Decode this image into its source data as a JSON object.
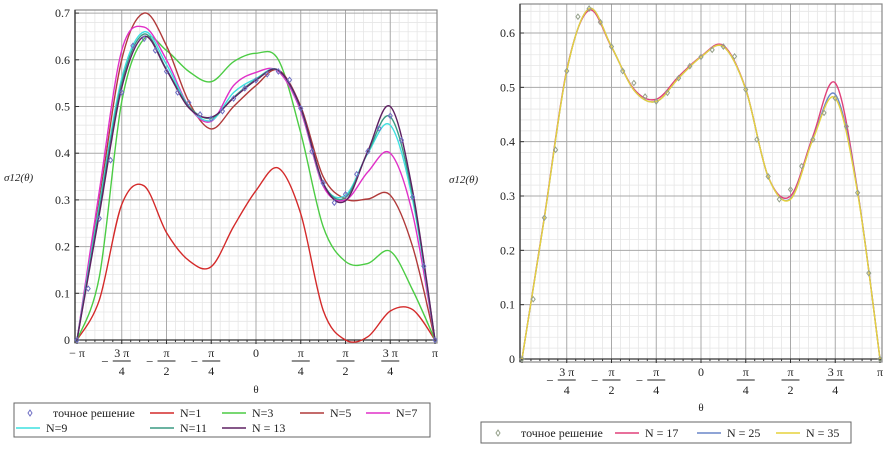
{
  "chart_data": [
    {
      "type": "line",
      "ylabel": "σ12(θ)",
      "xlabel": "θ",
      "xlim": [
        -3.14159,
        3.14159
      ],
      "ylim": [
        0,
        0.7
      ],
      "yticks": [
        "0",
        "0.1",
        "0.2",
        "0.3",
        "0.4",
        "0.5",
        "0.6",
        "0.7"
      ],
      "xticks": [
        {
          "pre": "",
          "num": "− π",
          "den": ""
        },
        {
          "pre": "−",
          "num": "3 π",
          "den": "4"
        },
        {
          "pre": "−",
          "num": "π",
          "den": "2"
        },
        {
          "pre": "−",
          "num": "π",
          "den": "4"
        },
        {
          "pre": "",
          "num": "0",
          "den": ""
        },
        {
          "pre": "",
          "num": "π",
          "den": "4"
        },
        {
          "pre": "",
          "num": "π",
          "den": "2"
        },
        {
          "pre": "",
          "num": "3 π",
          "den": "4"
        },
        {
          "pre": "",
          "num": "π",
          "den": ""
        }
      ],
      "grid": true,
      "legend_position": "bottom",
      "exact": {
        "name": "точное решение",
        "color": "#6f6fc4",
        "marker": "diamond",
        "x": [
          -3.1416,
          -2.9452,
          -2.7489,
          -2.5525,
          -2.3562,
          -2.1598,
          -1.9635,
          -1.7671,
          -1.5708,
          -1.3744,
          -1.1781,
          -0.9817,
          -0.7854,
          -0.589,
          -0.3927,
          -0.1963,
          0,
          0.1963,
          0.3927,
          0.589,
          0.7854,
          0.9817,
          1.1781,
          1.3744,
          1.5708,
          1.7671,
          1.9635,
          2.1598,
          2.3562,
          2.5525,
          2.7489,
          2.9452,
          3.1416
        ],
        "y": [
          0,
          0.11,
          0.26,
          0.385,
          0.53,
          0.63,
          0.645,
          0.62,
          0.575,
          0.53,
          0.508,
          0.483,
          0.474,
          0.49,
          0.517,
          0.539,
          0.556,
          0.569,
          0.575,
          0.557,
          0.496,
          0.404,
          0.336,
          0.294,
          0.312,
          0.355,
          0.404,
          0.453,
          0.48,
          0.428,
          0.306,
          0.158,
          0
        ]
      },
      "x_series": [
        -3.1416,
        -2.7489,
        -2.3562,
        -1.9635,
        -1.5708,
        -1.1781,
        -0.7854,
        -0.3927,
        0,
        0.3927,
        0.7854,
        1.1781,
        1.5708,
        1.9635,
        2.3562,
        2.7489,
        3.1416
      ],
      "series": [
        {
          "name": "N=1",
          "color": "#d42a2a",
          "y": [
            0,
            0.086,
            0.29,
            0.33,
            0.23,
            0.17,
            0.157,
            0.243,
            0.32,
            0.368,
            0.27,
            0.064,
            0.0,
            0.007,
            0.062,
            0.065,
            0
          ]
        },
        {
          "name": "N=3",
          "color": "#4ccc44",
          "y": [
            0,
            0.136,
            0.51,
            0.645,
            0.62,
            0.575,
            0.553,
            0.596,
            0.614,
            0.6,
            0.443,
            0.243,
            0.168,
            0.164,
            0.19,
            0.107,
            0
          ]
        },
        {
          "name": "N=5",
          "color": "#b03a3a",
          "y": [
            0,
            0.3,
            0.6,
            0.7,
            0.63,
            0.51,
            0.452,
            0.5,
            0.545,
            0.578,
            0.5,
            0.35,
            0.302,
            0.302,
            0.31,
            0.2,
            0
          ]
        },
        {
          "name": "N=7",
          "color": "#e030c8",
          "y": [
            0,
            0.32,
            0.62,
            0.67,
            0.6,
            0.5,
            0.468,
            0.545,
            0.573,
            0.575,
            0.49,
            0.33,
            0.3,
            0.36,
            0.4,
            0.27,
            0
          ]
        },
        {
          "name": "N=9",
          "color": "#3fe0e0",
          "y": [
            0,
            0.29,
            0.56,
            0.66,
            0.59,
            0.5,
            0.47,
            0.53,
            0.56,
            0.578,
            0.495,
            0.335,
            0.31,
            0.4,
            0.46,
            0.3,
            0
          ]
        },
        {
          "name": "N=11",
          "color": "#3a9a82",
          "y": [
            0,
            0.28,
            0.55,
            0.655,
            0.58,
            0.5,
            0.475,
            0.52,
            0.558,
            0.577,
            0.497,
            0.336,
            0.305,
            0.402,
            0.478,
            0.31,
            0
          ]
        },
        {
          "name": "N = 13",
          "color": "#5e2062",
          "y": [
            0,
            0.27,
            0.54,
            0.65,
            0.578,
            0.497,
            0.477,
            0.518,
            0.556,
            0.578,
            0.497,
            0.336,
            0.298,
            0.405,
            0.5,
            0.32,
            0
          ]
        }
      ]
    },
    {
      "type": "line",
      "ylabel": "σ12(θ)",
      "xlabel": "θ",
      "xlim": [
        -3.14159,
        3.14159
      ],
      "ylim": [
        0,
        0.65
      ],
      "yticks": [
        "0",
        "0.1",
        "0.2",
        "0.3",
        "0.4",
        "0.5",
        "0.6"
      ],
      "xticks": [
        {
          "pre": "−",
          "num": "3 π",
          "den": "4"
        },
        {
          "pre": "−",
          "num": "π",
          "den": "2"
        },
        {
          "pre": "−",
          "num": "π",
          "den": "4"
        },
        {
          "pre": "",
          "num": "0",
          "den": ""
        },
        {
          "pre": "",
          "num": "π",
          "den": "4"
        },
        {
          "pre": "",
          "num": "π",
          "den": "2"
        },
        {
          "pre": "",
          "num": "3 π",
          "den": "4"
        },
        {
          "pre": "",
          "num": "π",
          "den": ""
        }
      ],
      "grid": true,
      "legend_position": "bottom",
      "exact": {
        "name": "точное решение",
        "color": "#94a08a",
        "marker": "diamond",
        "x": [
          -3.1416,
          -2.9452,
          -2.7489,
          -2.5525,
          -2.3562,
          -2.1598,
          -1.9635,
          -1.7671,
          -1.5708,
          -1.3744,
          -1.1781,
          -0.9817,
          -0.7854,
          -0.589,
          -0.3927,
          -0.1963,
          0,
          0.1963,
          0.3927,
          0.589,
          0.7854,
          0.9817,
          1.1781,
          1.3744,
          1.5708,
          1.7671,
          1.9635,
          2.1598,
          2.3562,
          2.5525,
          2.7489,
          2.9452,
          3.1416
        ],
        "y": [
          0,
          0.11,
          0.26,
          0.385,
          0.53,
          0.63,
          0.645,
          0.62,
          0.575,
          0.53,
          0.508,
          0.483,
          0.474,
          0.49,
          0.517,
          0.539,
          0.556,
          0.569,
          0.575,
          0.557,
          0.496,
          0.404,
          0.336,
          0.294,
          0.312,
          0.355,
          0.404,
          0.453,
          0.48,
          0.428,
          0.306,
          0.158,
          0
        ]
      },
      "x_series": [
        -3.1416,
        -2.7489,
        -2.3562,
        -1.9635,
        -1.5708,
        -1.1781,
        -0.7854,
        -0.3927,
        0,
        0.3927,
        0.7854,
        1.1781,
        1.5708,
        1.9635,
        2.3562,
        2.7489,
        3.1416
      ],
      "series": [
        {
          "name": "N = 17",
          "color": "#e0407a",
          "y": [
            0,
            0.262,
            0.532,
            0.642,
            0.574,
            0.497,
            0.478,
            0.52,
            0.557,
            0.577,
            0.497,
            0.336,
            0.3,
            0.41,
            0.508,
            0.31,
            0
          ]
        },
        {
          "name": "N = 25",
          "color": "#6a86c8",
          "y": [
            0,
            0.26,
            0.53,
            0.645,
            0.575,
            0.495,
            0.474,
            0.517,
            0.556,
            0.575,
            0.496,
            0.336,
            0.295,
            0.405,
            0.487,
            0.308,
            0
          ]
        },
        {
          "name": "N = 35",
          "color": "#e6d23c",
          "y": [
            0,
            0.26,
            0.53,
            0.645,
            0.575,
            0.495,
            0.474,
            0.517,
            0.556,
            0.575,
            0.496,
            0.336,
            0.294,
            0.404,
            0.48,
            0.306,
            0
          ]
        }
      ]
    }
  ]
}
